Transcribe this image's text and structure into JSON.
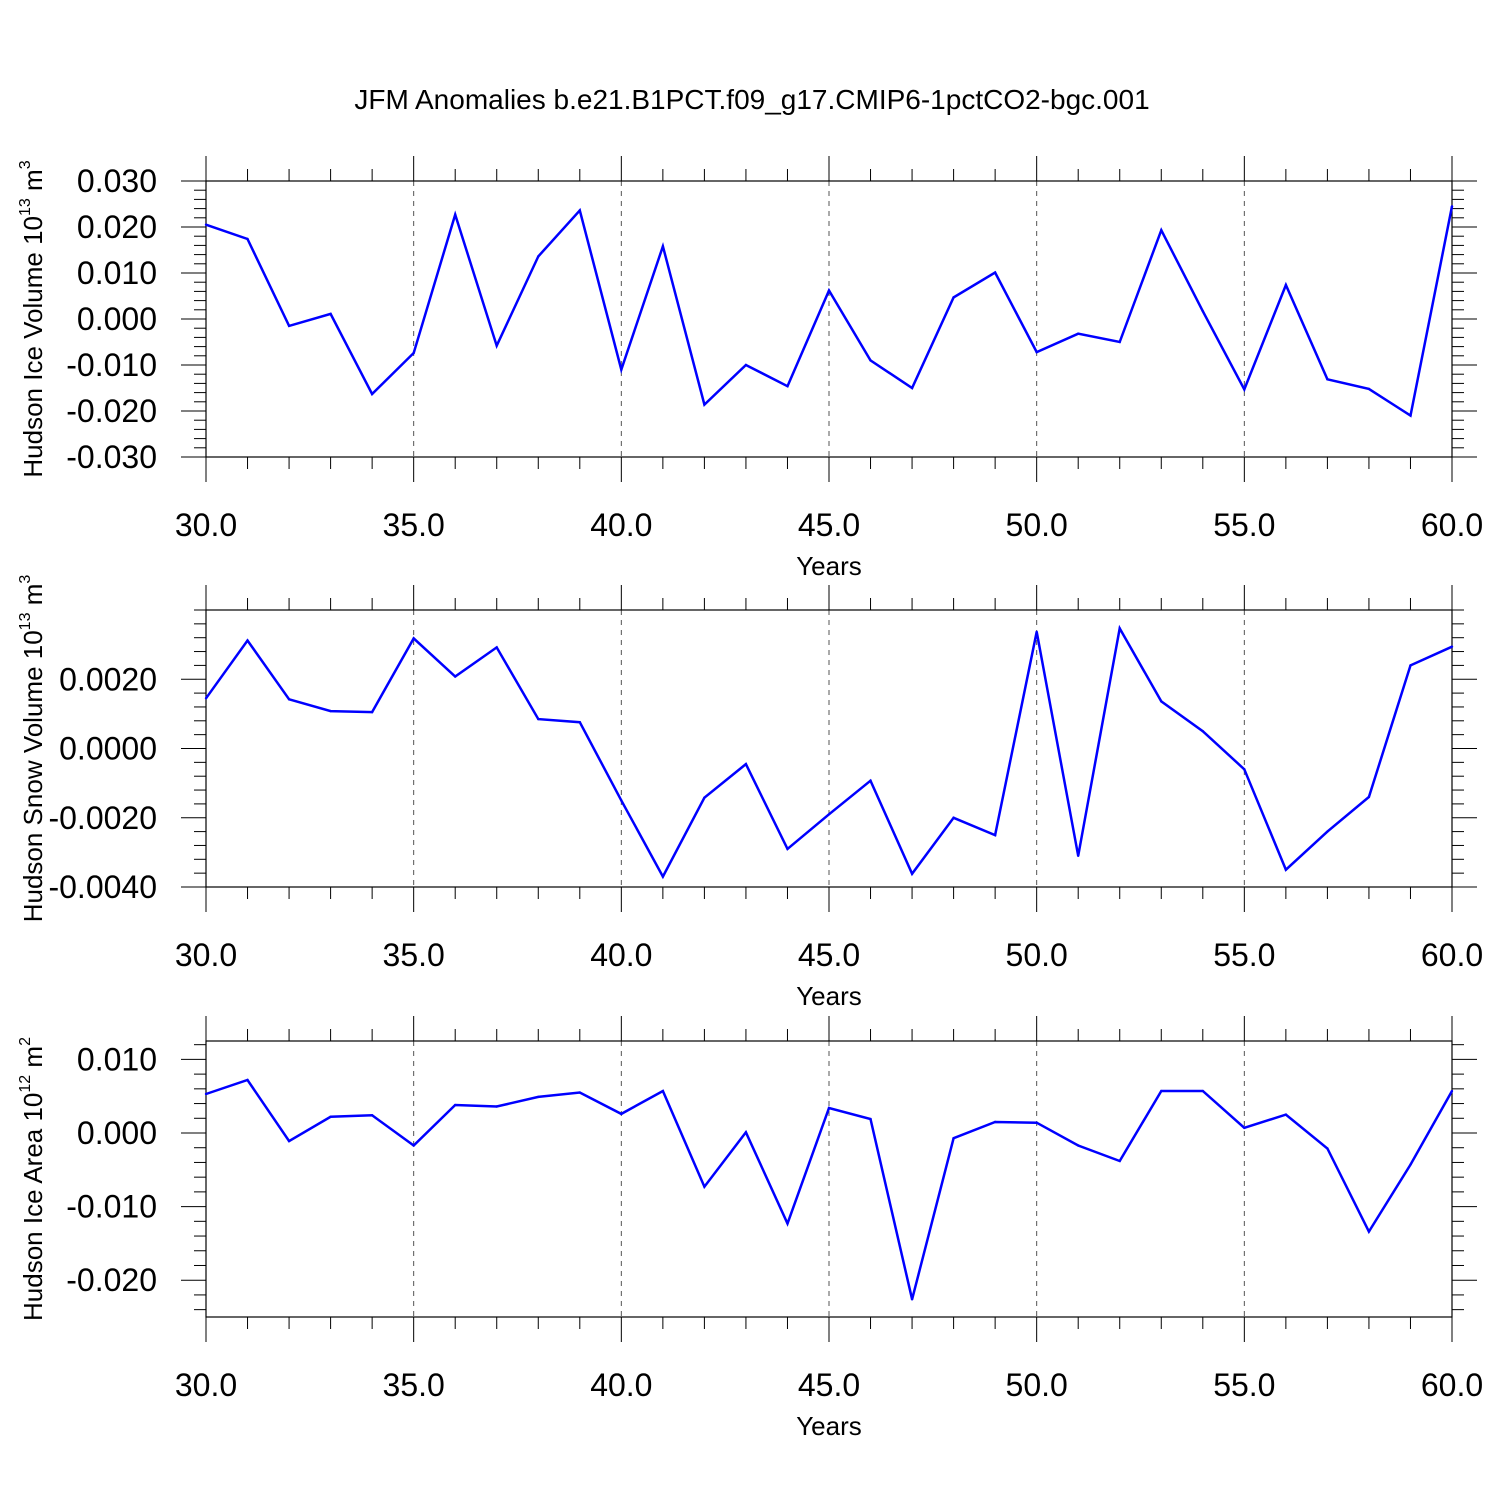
{
  "figure": {
    "title": "JFM Anomalies b.e21.B1PCT.f09_g17.CMIP6-1pctCO2-bgc.001"
  },
  "colors": {
    "series": "#0000ff"
  },
  "chart_data": [
    {
      "type": "line",
      "ylabel": {
        "main": "Hudson Ice Volume 10",
        "exp": "13",
        "unit": " m",
        "unit_exp": "3"
      },
      "xlabel": "Years",
      "xlim": [
        30,
        60
      ],
      "ylim": [
        -0.03,
        0.03
      ],
      "xticks": [
        30,
        35,
        40,
        45,
        50,
        55,
        60
      ],
      "xtick_labels": [
        "30.0",
        "35.0",
        "40.0",
        "45.0",
        "50.0",
        "55.0",
        "60.0"
      ],
      "yticks": [
        -0.03,
        -0.02,
        -0.01,
        0.0,
        0.01,
        0.02,
        0.03
      ],
      "ytick_labels": [
        "-0.030",
        "-0.020",
        "-0.010",
        "0.000",
        "0.010",
        "0.020",
        "0.030"
      ],
      "grid": "vertical dashed at major x ticks",
      "x": [
        30,
        31,
        32,
        33,
        34,
        35,
        36,
        37,
        38,
        39,
        40,
        41,
        42,
        43,
        44,
        45,
        46,
        47,
        48,
        49,
        50,
        51,
        52,
        53,
        54,
        55,
        56,
        57,
        58,
        59,
        60
      ],
      "y": [
        0.0205,
        0.0174,
        -0.0015,
        0.0011,
        -0.0163,
        -0.0074,
        0.0227,
        -0.0058,
        0.0136,
        0.0236,
        -0.011,
        0.0158,
        -0.0186,
        -0.01,
        -0.0146,
        0.0062,
        -0.009,
        -0.015,
        0.0047,
        0.0101,
        -0.0072,
        -0.0032,
        -0.005,
        0.0193,
        0.0017,
        -0.0153,
        0.0074,
        -0.0131,
        -0.0152,
        -0.021,
        0.0245
      ]
    },
    {
      "type": "line",
      "ylabel": {
        "main": "Hudson Snow Volume 10",
        "exp": "13",
        "unit": " m",
        "unit_exp": "3"
      },
      "xlabel": "Years",
      "xlim": [
        30,
        60
      ],
      "ylim": [
        -0.004,
        0.004
      ],
      "xticks": [
        30,
        35,
        40,
        45,
        50,
        55,
        60
      ],
      "xtick_labels": [
        "30.0",
        "35.0",
        "40.0",
        "45.0",
        "50.0",
        "55.0",
        "60.0"
      ],
      "yticks": [
        -0.004,
        -0.002,
        0.0,
        0.002
      ],
      "ytick_labels": [
        "-0.0040",
        "-0.0020",
        "0.0000",
        "0.0020"
      ],
      "grid": "vertical dashed at major x ticks",
      "x": [
        30,
        31,
        32,
        33,
        34,
        35,
        36,
        37,
        38,
        39,
        40,
        41,
        42,
        43,
        44,
        45,
        46,
        47,
        48,
        49,
        50,
        51,
        52,
        53,
        54,
        55,
        56,
        57,
        58,
        59,
        60
      ],
      "y": [
        0.00145,
        0.00312,
        0.00142,
        0.00108,
        0.00105,
        0.00318,
        0.00208,
        0.00292,
        0.00085,
        0.00076,
        -0.0015,
        -0.0037,
        -0.00142,
        -0.00045,
        -0.0029,
        -0.0019,
        -0.00093,
        -0.00362,
        -0.002,
        -0.0025,
        0.00337,
        -0.0031,
        0.00347,
        0.00136,
        0.0005,
        -0.0006,
        -0.0035,
        -0.0024,
        -0.0014,
        0.0024,
        0.00294
      ]
    },
    {
      "type": "line",
      "ylabel": {
        "main": "Hudson Ice Area 10",
        "exp": "12",
        "unit": " m",
        "unit_exp": "2"
      },
      "xlabel": "Years",
      "xlim": [
        30,
        60
      ],
      "ylim": [
        -0.025,
        0.0125
      ],
      "xticks": [
        30,
        35,
        40,
        45,
        50,
        55,
        60
      ],
      "xtick_labels": [
        "30.0",
        "35.0",
        "40.0",
        "45.0",
        "50.0",
        "55.0",
        "60.0"
      ],
      "yticks": [
        -0.02,
        -0.01,
        0.0,
        0.01
      ],
      "ytick_labels": [
        "-0.020",
        "-0.010",
        "0.000",
        "0.010"
      ],
      "grid": "vertical dashed at major x ticks",
      "x": [
        30,
        31,
        32,
        33,
        34,
        35,
        36,
        37,
        38,
        39,
        40,
        41,
        42,
        43,
        44,
        45,
        46,
        47,
        48,
        49,
        50,
        51,
        52,
        53,
        54,
        55,
        56,
        57,
        58,
        59,
        60
      ],
      "y": [
        0.0053,
        0.0072,
        -0.0011,
        0.0022,
        0.0024,
        -0.0017,
        0.0038,
        0.0036,
        0.0049,
        0.0055,
        0.0026,
        0.0057,
        -0.0073,
        0.0001,
        -0.0123,
        0.0034,
        0.0019,
        -0.0226,
        -0.0007,
        0.0015,
        0.0014,
        -0.0017,
        -0.0038,
        0.0057,
        0.0057,
        0.0007,
        0.0025,
        -0.0021,
        -0.0134,
        -0.0043,
        0.0057
      ]
    }
  ]
}
